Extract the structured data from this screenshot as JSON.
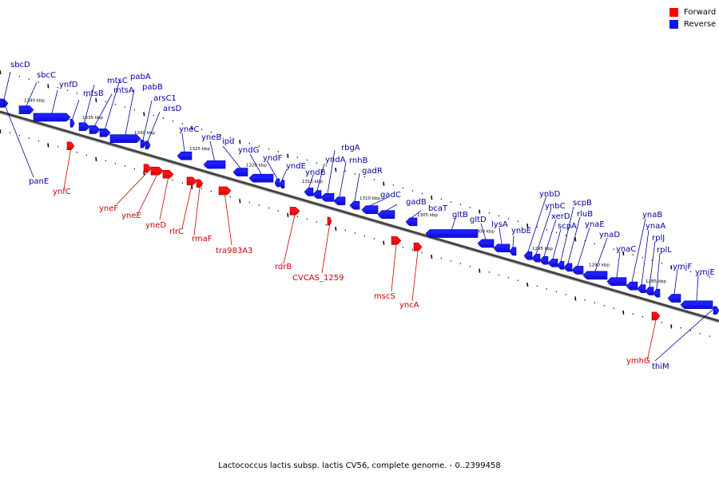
{
  "caption": "Lactococcus lactis subsp. lactis CV56, complete genome. - 0..2399458",
  "legend": [
    {
      "label": "Forward",
      "color": "#ff0000"
    },
    {
      "label": "Reverse",
      "color": "#1010ff"
    }
  ],
  "colors": {
    "forward": "#ff1010",
    "forward_dark": "#b00000",
    "reverse": "#1e1eff",
    "reverse_dark": "#0000a8",
    "forward_text": "#c80000",
    "reverse_text": "#0000a0"
  },
  "kbp_labels": [
    "1340 kbp",
    "1335 kbp",
    "1330 kbp",
    "1325 kbp",
    "1320 kbp",
    "1315 kbp",
    "1310 kbp",
    "1305 kbp",
    "1300 kbp",
    "1295 kbp",
    "1290 kbp",
    "1285 kbp"
  ],
  "reverse_genes": [
    "sbcD",
    "sbcC",
    "ynfD",
    "mtsB",
    "mtsC",
    "mtsA",
    "pabA",
    "pabB",
    "arsC1",
    "arsD",
    "yneC",
    "yneB",
    "ipd",
    "yndG",
    "yndF",
    "yndE",
    "yndB",
    "yndA",
    "rbgA",
    "rnhB",
    "gadR",
    "gadC",
    "gadB",
    "bcaT",
    "gltB",
    "gltD",
    "lysA",
    "ynbE",
    "ynbD",
    "ynbC",
    "xerD",
    "scpA",
    "scpB",
    "rluB",
    "ynaE",
    "ynaD",
    "ynaC",
    "ynaB",
    "ynaA",
    "rplJ",
    "rplL",
    "ymjF",
    "ymjE",
    "panE",
    "thiM"
  ],
  "forward_genes": [
    "ynfC",
    "yneF",
    "yneE",
    "yneD",
    "rlrC",
    "rmaF",
    "tra983A3",
    "rdrB",
    "CVCAS_1259",
    "mscS",
    "yncA",
    "ymhG"
  ]
}
